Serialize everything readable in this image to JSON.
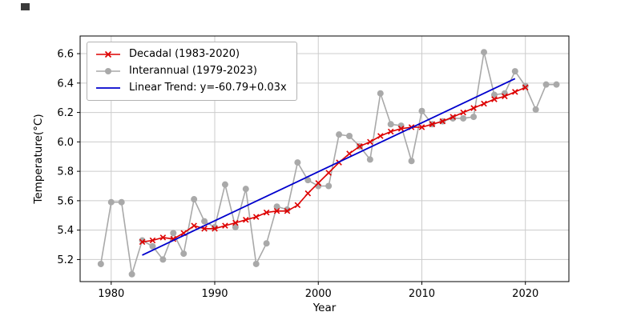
{
  "chart_data": {
    "type": "line",
    "title": "",
    "xlabel": "Year",
    "ylabel": "Temperature(°C)",
    "xlim": [
      1977.0,
      2024.2
    ],
    "ylim": [
      5.05,
      6.72
    ],
    "xticks": [
      1980,
      1990,
      2000,
      2010,
      2020
    ],
    "yticks": [
      5.2,
      5.4,
      5.6,
      5.8,
      6.0,
      6.2,
      6.4,
      6.6
    ],
    "grid": true,
    "legend_position": "upper left",
    "series": [
      {
        "name": "Decadal (1983-2020)",
        "color": "#dd0000",
        "marker": "x",
        "zorder": 2,
        "width": 1.6,
        "x": [
          1983,
          1984,
          1985,
          1986,
          1987,
          1988,
          1989,
          1990,
          1991,
          1992,
          1993,
          1994,
          1995,
          1996,
          1997,
          1998,
          1999,
          2000,
          2001,
          2002,
          2003,
          2004,
          2005,
          2006,
          2007,
          2008,
          2009,
          2010,
          2011,
          2012,
          2013,
          2014,
          2015,
          2016,
          2017,
          2018,
          2019,
          2020
        ],
        "values": [
          5.32,
          5.33,
          5.35,
          5.34,
          5.38,
          5.43,
          5.41,
          5.41,
          5.43,
          5.45,
          5.47,
          5.49,
          5.52,
          5.53,
          5.53,
          5.57,
          5.65,
          5.72,
          5.79,
          5.86,
          5.92,
          5.97,
          6.0,
          6.04,
          6.07,
          6.09,
          6.1,
          6.1,
          6.12,
          6.14,
          6.17,
          6.2,
          6.23,
          6.26,
          6.29,
          6.31,
          6.34,
          6.37
        ]
      },
      {
        "name": "Interannual (1979-2023)",
        "color": "#a9a9a9",
        "marker": "o",
        "zorder": 1,
        "width": 1.6,
        "x": [
          1979,
          1980,
          1981,
          1982,
          1983,
          1984,
          1985,
          1986,
          1987,
          1988,
          1989,
          1990,
          1991,
          1992,
          1993,
          1994,
          1995,
          1996,
          1997,
          1998,
          1999,
          2000,
          2001,
          2002,
          2003,
          2004,
          2005,
          2006,
          2007,
          2008,
          2009,
          2010,
          2011,
          2012,
          2013,
          2014,
          2015,
          2016,
          2017,
          2018,
          2019,
          2020,
          2021,
          2022,
          2023
        ],
        "values": [
          5.17,
          5.59,
          5.59,
          5.1,
          5.33,
          5.29,
          5.2,
          5.38,
          5.24,
          5.61,
          5.46,
          5.42,
          5.71,
          5.42,
          5.68,
          5.17,
          5.31,
          5.56,
          5.54,
          5.86,
          5.74,
          5.7,
          5.7,
          6.05,
          6.04,
          5.97,
          5.88,
          6.33,
          6.12,
          6.11,
          5.87,
          6.21,
          6.12,
          6.14,
          6.16,
          6.16,
          6.17,
          6.61,
          6.32,
          6.33,
          6.48,
          6.38,
          6.22,
          6.39,
          6.39
        ]
      },
      {
        "name": "Linear Trend: y=-60.79+0.03x",
        "color": "#0000cd",
        "marker": "none",
        "zorder": 3,
        "width": 1.8,
        "x": [
          1983,
          2019
        ],
        "values": [
          5.23,
          6.43
        ]
      }
    ]
  }
}
